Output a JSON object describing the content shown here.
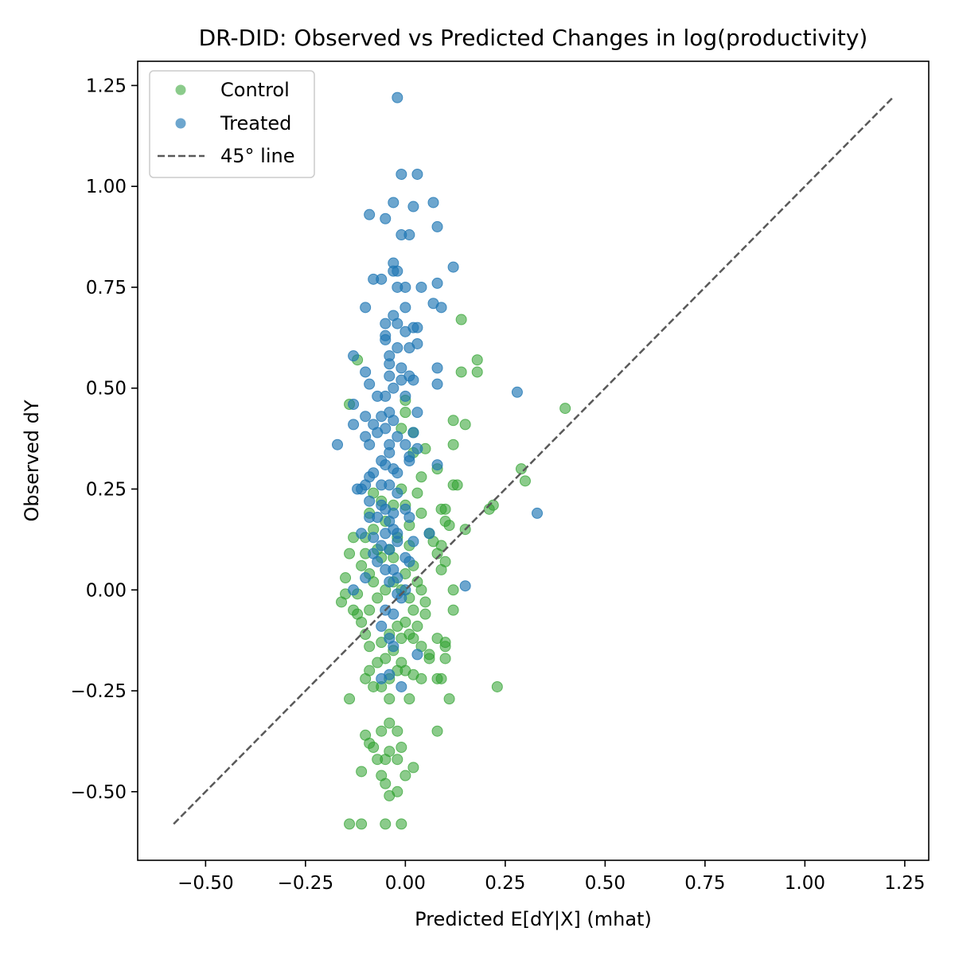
{
  "chart_data": {
    "type": "scatter",
    "title": "DR-DID: Observed vs Predicted Changes in log(productivity)",
    "xlabel": "Predicted E[dY|X] (mhat)",
    "ylabel": "Observed dY",
    "xlim": [
      -0.67,
      1.31
    ],
    "ylim": [
      -0.67,
      1.31
    ],
    "xticks": [
      -0.5,
      -0.25,
      0.0,
      0.25,
      0.5,
      0.75,
      1.0,
      1.25
    ],
    "yticks": [
      -0.5,
      -0.25,
      0.0,
      0.25,
      0.5,
      0.75,
      1.0,
      1.25
    ],
    "xtick_labels": [
      "−0.50",
      "−0.25",
      "0.00",
      "0.25",
      "0.50",
      "0.75",
      "1.00",
      "1.25"
    ],
    "ytick_labels": [
      "−0.50",
      "−0.25",
      "0.00",
      "0.25",
      "0.50",
      "0.75",
      "1.00",
      "1.25"
    ],
    "grid": false,
    "legend_position": "top-left",
    "reference_line": {
      "name": "45° line",
      "x": [
        -0.58,
        1.22
      ],
      "y": [
        -0.58,
        1.22
      ],
      "color": "#595959",
      "style": "dashed"
    },
    "series": [
      {
        "name": "Control",
        "color": "#2ca02c",
        "alpha": 0.55,
        "points": [
          [
            -0.14,
            0.46
          ],
          [
            -0.12,
            0.57
          ],
          [
            -0.13,
            0.13
          ],
          [
            -0.1,
            0.09
          ],
          [
            -0.14,
            0.09
          ],
          [
            -0.15,
            0.03
          ],
          [
            -0.15,
            -0.01
          ],
          [
            -0.16,
            -0.03
          ],
          [
            -0.13,
            -0.05
          ],
          [
            -0.12,
            -0.06
          ],
          [
            -0.12,
            -0.01
          ],
          [
            -0.11,
            0.06
          ],
          [
            -0.09,
            0.04
          ],
          [
            -0.08,
            0.02
          ],
          [
            -0.1,
            0.13
          ],
          [
            -0.09,
            0.19
          ],
          [
            -0.08,
            0.24
          ],
          [
            -0.06,
            0.22
          ],
          [
            -0.05,
            0.17
          ],
          [
            -0.04,
            0.1
          ],
          [
            -0.03,
            0.08
          ],
          [
            -0.02,
            0.13
          ],
          [
            -0.03,
            0.21
          ],
          [
            -0.01,
            0.25
          ],
          [
            0.0,
            0.21
          ],
          [
            0.01,
            0.16
          ],
          [
            0.01,
            0.11
          ],
          [
            0.02,
            0.06
          ],
          [
            -0.01,
            0.0
          ],
          [
            0.01,
            -0.02
          ],
          [
            0.02,
            -0.05
          ],
          [
            0.03,
            -0.09
          ],
          [
            0.01,
            -0.11
          ],
          [
            -0.01,
            -0.12
          ],
          [
            -0.03,
            -0.15
          ],
          [
            -0.05,
            -0.17
          ],
          [
            -0.07,
            -0.18
          ],
          [
            -0.09,
            -0.2
          ],
          [
            -0.1,
            -0.22
          ],
          [
            -0.08,
            -0.24
          ],
          [
            -0.06,
            -0.24
          ],
          [
            -0.04,
            -0.22
          ],
          [
            -0.02,
            -0.2
          ],
          [
            -0.01,
            -0.18
          ],
          [
            0.0,
            -0.2
          ],
          [
            0.02,
            -0.21
          ],
          [
            0.04,
            -0.22
          ],
          [
            0.06,
            -0.16
          ],
          [
            0.04,
            -0.14
          ],
          [
            0.02,
            -0.12
          ],
          [
            0.0,
            -0.08
          ],
          [
            -0.02,
            -0.09
          ],
          [
            -0.04,
            -0.11
          ],
          [
            -0.06,
            -0.13
          ],
          [
            -0.09,
            -0.14
          ],
          [
            -0.1,
            -0.11
          ],
          [
            -0.11,
            -0.08
          ],
          [
            -0.09,
            -0.05
          ],
          [
            -0.07,
            -0.02
          ],
          [
            -0.05,
            0.0
          ],
          [
            -0.03,
            0.02
          ],
          [
            0.0,
            0.04
          ],
          [
            0.03,
            0.02
          ],
          [
            0.04,
            0.0
          ],
          [
            0.05,
            -0.03
          ],
          [
            0.05,
            -0.06
          ],
          [
            0.08,
            0.09
          ],
          [
            0.09,
            0.11
          ],
          [
            0.1,
            0.17
          ],
          [
            0.1,
            0.2
          ],
          [
            0.12,
            0.26
          ],
          [
            0.13,
            0.26
          ],
          [
            0.11,
            0.16
          ],
          [
            0.1,
            0.07
          ],
          [
            0.12,
            0.0
          ],
          [
            0.12,
            -0.05
          ],
          [
            0.1,
            -0.14
          ],
          [
            0.1,
            -0.17
          ],
          [
            0.11,
            -0.27
          ],
          [
            0.09,
            -0.22
          ],
          [
            0.08,
            -0.35
          ],
          [
            0.06,
            0.14
          ],
          [
            0.04,
            0.19
          ],
          [
            0.03,
            0.24
          ],
          [
            0.04,
            0.28
          ],
          [
            0.02,
            0.34
          ],
          [
            0.05,
            0.35
          ],
          [
            0.09,
            0.2
          ],
          [
            0.12,
            0.36
          ],
          [
            0.12,
            0.42
          ],
          [
            0.15,
            0.41
          ],
          [
            0.14,
            0.54
          ],
          [
            0.18,
            0.54
          ],
          [
            0.18,
            0.57
          ],
          [
            0.08,
            0.3
          ],
          [
            0.14,
            0.67
          ],
          [
            0.0,
            0.44
          ],
          [
            0.0,
            0.47
          ],
          [
            -0.01,
            0.4
          ],
          [
            0.02,
            0.39
          ],
          [
            0.15,
            0.15
          ],
          [
            0.21,
            0.2
          ],
          [
            0.22,
            0.21
          ],
          [
            0.29,
            0.3
          ],
          [
            0.3,
            0.27
          ],
          [
            0.23,
            -0.24
          ],
          [
            0.4,
            0.45
          ],
          [
            -0.14,
            -0.27
          ],
          [
            -0.1,
            -0.36
          ],
          [
            -0.09,
            -0.38
          ],
          [
            -0.08,
            -0.39
          ],
          [
            -0.07,
            -0.42
          ],
          [
            -0.06,
            -0.46
          ],
          [
            -0.05,
            -0.48
          ],
          [
            -0.11,
            -0.45
          ],
          [
            -0.04,
            -0.51
          ],
          [
            -0.02,
            -0.5
          ],
          [
            -0.05,
            -0.42
          ],
          [
            -0.04,
            -0.4
          ],
          [
            -0.02,
            -0.42
          ],
          [
            0.0,
            -0.46
          ],
          [
            0.02,
            -0.44
          ],
          [
            -0.01,
            -0.39
          ],
          [
            -0.04,
            -0.33
          ],
          [
            -0.06,
            -0.35
          ],
          [
            -0.02,
            -0.35
          ],
          [
            -0.04,
            -0.27
          ],
          [
            0.01,
            -0.27
          ],
          [
            -0.14,
            -0.58
          ],
          [
            -0.11,
            -0.58
          ],
          [
            -0.05,
            -0.58
          ],
          [
            -0.01,
            -0.58
          ],
          [
            0.08,
            -0.22
          ],
          [
            0.09,
            0.05
          ],
          [
            0.07,
            0.12
          ],
          [
            -0.07,
            0.1
          ],
          [
            -0.06,
            0.08
          ],
          [
            -0.08,
            0.15
          ],
          [
            0.06,
            -0.17
          ],
          [
            0.08,
            -0.12
          ],
          [
            0.1,
            -0.13
          ]
        ]
      },
      {
        "name": "Treated",
        "color": "#1f77b4",
        "alpha": 0.65,
        "points": [
          [
            -0.02,
            1.22
          ],
          [
            -0.01,
            1.03
          ],
          [
            0.03,
            1.03
          ],
          [
            -0.03,
            0.96
          ],
          [
            0.02,
            0.95
          ],
          [
            0.07,
            0.96
          ],
          [
            -0.09,
            0.93
          ],
          [
            -0.05,
            0.92
          ],
          [
            0.08,
            0.9
          ],
          [
            -0.01,
            0.88
          ],
          [
            0.01,
            0.88
          ],
          [
            -0.03,
            0.81
          ],
          [
            -0.02,
            0.79
          ],
          [
            -0.03,
            0.79
          ],
          [
            0.12,
            0.8
          ],
          [
            -0.08,
            0.77
          ],
          [
            -0.06,
            0.77
          ],
          [
            0.0,
            0.75
          ],
          [
            0.04,
            0.75
          ],
          [
            0.08,
            0.76
          ],
          [
            -0.02,
            0.75
          ],
          [
            -0.1,
            0.7
          ],
          [
            0.07,
            0.71
          ],
          [
            0.09,
            0.7
          ],
          [
            -0.03,
            0.68
          ],
          [
            0.0,
            0.7
          ],
          [
            -0.05,
            0.66
          ],
          [
            -0.02,
            0.66
          ],
          [
            0.02,
            0.65
          ],
          [
            0.03,
            0.65
          ],
          [
            0.0,
            0.64
          ],
          [
            -0.05,
            0.63
          ],
          [
            -0.05,
            0.62
          ],
          [
            -0.02,
            0.6
          ],
          [
            0.03,
            0.61
          ],
          [
            0.01,
            0.6
          ],
          [
            -0.13,
            0.58
          ],
          [
            -0.04,
            0.58
          ],
          [
            -0.04,
            0.56
          ],
          [
            -0.01,
            0.55
          ],
          [
            0.08,
            0.55
          ],
          [
            -0.1,
            0.54
          ],
          [
            0.01,
            0.53
          ],
          [
            -0.09,
            0.51
          ],
          [
            -0.04,
            0.53
          ],
          [
            -0.01,
            0.52
          ],
          [
            0.02,
            0.52
          ],
          [
            0.08,
            0.51
          ],
          [
            -0.07,
            0.48
          ],
          [
            -0.05,
            0.48
          ],
          [
            -0.03,
            0.5
          ],
          [
            -0.13,
            0.46
          ],
          [
            -0.1,
            0.43
          ],
          [
            -0.08,
            0.41
          ],
          [
            -0.06,
            0.43
          ],
          [
            -0.04,
            0.44
          ],
          [
            -0.03,
            0.42
          ],
          [
            0.0,
            0.48
          ],
          [
            0.03,
            0.44
          ],
          [
            -0.13,
            0.41
          ],
          [
            -0.07,
            0.39
          ],
          [
            -0.05,
            0.4
          ],
          [
            -0.02,
            0.38
          ],
          [
            -0.04,
            0.36
          ],
          [
            0.0,
            0.36
          ],
          [
            0.02,
            0.39
          ],
          [
            -0.1,
            0.38
          ],
          [
            -0.09,
            0.36
          ],
          [
            -0.17,
            0.36
          ],
          [
            -0.04,
            0.34
          ],
          [
            -0.06,
            0.32
          ],
          [
            0.01,
            0.33
          ],
          [
            -0.05,
            0.31
          ],
          [
            -0.03,
            0.3
          ],
          [
            0.01,
            0.32
          ],
          [
            0.08,
            0.31
          ],
          [
            -0.09,
            0.28
          ],
          [
            -0.08,
            0.29
          ],
          [
            -0.04,
            0.26
          ],
          [
            -0.02,
            0.29
          ],
          [
            -0.12,
            0.25
          ],
          [
            -0.11,
            0.25
          ],
          [
            -0.1,
            0.26
          ],
          [
            -0.02,
            0.24
          ],
          [
            -0.09,
            0.22
          ],
          [
            -0.06,
            0.21
          ],
          [
            -0.05,
            0.2
          ],
          [
            -0.03,
            0.19
          ],
          [
            0.0,
            0.2
          ],
          [
            -0.09,
            0.18
          ],
          [
            -0.07,
            0.18
          ],
          [
            -0.04,
            0.17
          ],
          [
            0.01,
            0.18
          ],
          [
            -0.03,
            0.15
          ],
          [
            -0.05,
            0.14
          ],
          [
            0.06,
            0.14
          ],
          [
            -0.11,
            0.14
          ],
          [
            -0.08,
            0.13
          ],
          [
            -0.06,
            0.11
          ],
          [
            -0.04,
            0.1
          ],
          [
            -0.02,
            0.12
          ],
          [
            0.02,
            0.12
          ],
          [
            -0.08,
            0.09
          ],
          [
            -0.07,
            0.07
          ],
          [
            -0.05,
            0.05
          ],
          [
            -0.03,
            0.05
          ],
          [
            0.01,
            0.07
          ],
          [
            -0.1,
            0.03
          ],
          [
            -0.04,
            0.02
          ],
          [
            -0.02,
            0.03
          ],
          [
            0.0,
            0.0
          ],
          [
            -0.13,
            0.0
          ],
          [
            -0.02,
            -0.01
          ],
          [
            -0.01,
            -0.02
          ],
          [
            0.15,
            0.01
          ],
          [
            -0.05,
            -0.05
          ],
          [
            -0.03,
            -0.06
          ],
          [
            -0.06,
            -0.09
          ],
          [
            -0.04,
            -0.12
          ],
          [
            -0.03,
            -0.14
          ],
          [
            0.03,
            -0.16
          ],
          [
            -0.06,
            -0.22
          ],
          [
            -0.04,
            -0.21
          ],
          [
            -0.01,
            -0.24
          ],
          [
            0.28,
            0.49
          ],
          [
            0.33,
            0.19
          ],
          [
            0.03,
            0.35
          ],
          [
            -0.06,
            0.26
          ],
          [
            -0.02,
            0.14
          ],
          [
            0.0,
            0.08
          ]
        ]
      }
    ]
  }
}
